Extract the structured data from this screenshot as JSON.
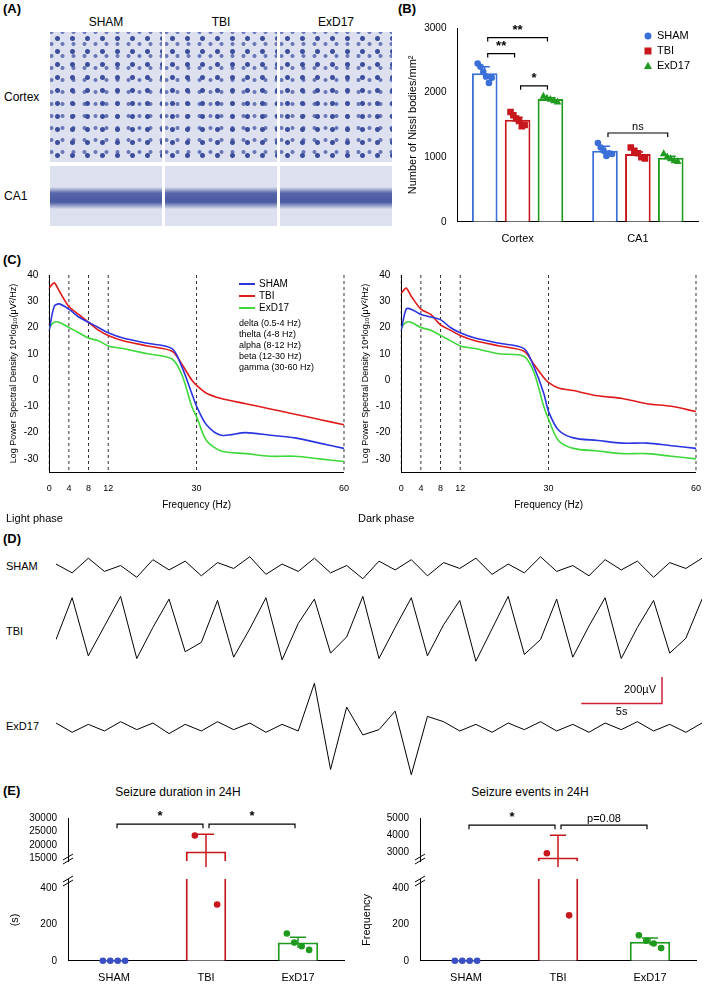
{
  "panel_labels": [
    "(A)",
    "(B)",
    "(C)",
    "(D)",
    "(E)"
  ],
  "panel_A": {
    "columns": [
      "SHAM",
      "TBI",
      "ExD17"
    ],
    "rows": [
      "Cortex",
      "CA1"
    ]
  },
  "chart_data": [
    {
      "type": "bar",
      "ylabel": "Number of Nissl bodies/mm²",
      "categories": [
        "Cortex",
        "CA1"
      ],
      "series": [
        {
          "name": "SHAM",
          "color": "#3a6fd8",
          "marker": "circle",
          "values": [
            2300,
            1100
          ],
          "errors": [
            100,
            70
          ],
          "points": [
            [
              2450,
              2400,
              2320,
              2250,
              2150,
              2230
            ],
            [
              1220,
              1150,
              1100,
              1020,
              1060,
              1050
            ]
          ]
        },
        {
          "name": "TBI",
          "color": "#c8161d",
          "marker": "square",
          "values": [
            1580,
            1050
          ],
          "errors": [
            40,
            30
          ],
          "points": [
            [
              1700,
              1650,
              1600,
              1560,
              1480,
              1500
            ],
            [
              1150,
              1100,
              1060,
              1000,
              980
            ]
          ]
        },
        {
          "name": "ExD17",
          "color": "#1f9a1f",
          "marker": "triangle",
          "values": [
            1900,
            990
          ],
          "errors": [
            20,
            25
          ],
          "points": [
            [
              1950,
              1920,
              1900,
              1880,
              1860
            ],
            [
              1060,
              1010,
              980,
              950,
              940
            ]
          ]
        }
      ],
      "ylim": [
        0,
        3000
      ],
      "yticks": [
        0,
        1000,
        2000,
        3000
      ],
      "legend": "upper right",
      "annotations": [
        {
          "category": "Cortex",
          "between": [
            "SHAM",
            "TBI"
          ],
          "text": "**"
        },
        {
          "category": "Cortex",
          "between": [
            "TBI",
            "ExD17"
          ],
          "text": "*"
        },
        {
          "category": "Cortex",
          "between": [
            "SHAM",
            "ExD17"
          ],
          "text": "**"
        },
        {
          "category": "CA1",
          "between": [
            "SHAM",
            "ExD17"
          ],
          "text": "ns"
        }
      ]
    },
    {
      "type": "line",
      "title": "Light phase",
      "xlabel": "Frequency (Hz)",
      "ylabel": "Log Power Spectral Density 10*log₁₀(μV²/Hz)",
      "x": [
        0,
        1,
        2,
        4,
        6,
        8,
        10,
        12,
        15,
        20,
        25,
        27,
        29,
        30,
        32,
        35,
        40,
        45,
        50,
        55,
        60
      ],
      "series": [
        {
          "name": "SHAM",
          "color": "#2b35e0",
          "values": [
            19,
            28,
            29,
            27,
            24,
            22,
            20,
            18,
            16,
            14,
            12,
            5,
            -5,
            -10,
            -17,
            -21,
            -20,
            -21,
            -22,
            -24,
            -26
          ]
        },
        {
          "name": "TBI",
          "color": "#e01b1b",
          "values": [
            35,
            37,
            34,
            28,
            25,
            22,
            19,
            17,
            15,
            13,
            11,
            6,
            0,
            -2,
            -5,
            -7,
            -9,
            -11,
            -13,
            -15,
            -17
          ]
        },
        {
          "name": "ExD17",
          "color": "#3ed83a",
          "values": [
            20,
            22,
            22,
            20,
            18,
            16,
            15,
            13,
            12,
            10,
            8,
            2,
            -10,
            -14,
            -23,
            -27,
            -28,
            -29,
            -29,
            -30,
            -31
          ]
        }
      ],
      "xlim": [
        0,
        60
      ],
      "xticks": [
        0,
        4,
        8,
        12,
        30,
        60
      ],
      "ylim": [
        -35,
        40
      ],
      "yticks": [
        -30,
        -20,
        -10,
        0,
        10,
        20,
        30,
        40
      ],
      "grid": "x",
      "legend": "upper right",
      "annotations": [
        "delta (0.5-4 Hz)",
        "thelta (4-8 Hz)",
        "alpha (8-12 Hz)",
        "beta (12-30 Hz)",
        "gamma (30-60 Hz)"
      ]
    },
    {
      "type": "line",
      "title": "Dark phase",
      "xlabel": "Frequency (Hz)",
      "ylabel": "Log Power Spectral Density 10*log₁₀(μV²/Hz)",
      "x": [
        0,
        1,
        2,
        4,
        6,
        8,
        10,
        12,
        15,
        20,
        25,
        27,
        29,
        30,
        32,
        35,
        40,
        45,
        50,
        55,
        60
      ],
      "series": [
        {
          "color": "#2b35e0",
          "values": [
            19,
            27,
            27,
            25,
            24,
            23,
            20,
            18,
            16,
            14,
            12,
            5,
            -5,
            -12,
            -19,
            -22,
            -23,
            -24,
            -24,
            -25,
            -26
          ]
        },
        {
          "color": "#e01b1b",
          "values": [
            33,
            35,
            32,
            27,
            25,
            21,
            19,
            17,
            15,
            13,
            11,
            6,
            1,
            -1,
            -3,
            -4,
            -6,
            -7,
            -9,
            -10,
            -12
          ]
        },
        {
          "color": "#3ed83a",
          "values": [
            20,
            22,
            22,
            20,
            19,
            17,
            15,
            13,
            12,
            10,
            9,
            3,
            -10,
            -15,
            -23,
            -26,
            -27,
            -28,
            -28,
            -29,
            -30
          ]
        }
      ],
      "xlim": [
        0,
        60
      ],
      "xticks": [
        0,
        4,
        8,
        12,
        30,
        60
      ],
      "ylim": [
        -35,
        40
      ],
      "yticks": [
        -30,
        -20,
        -10,
        0,
        10,
        20,
        30,
        40
      ],
      "grid": "x"
    },
    {
      "type": "line",
      "tick_labels": false,
      "xlim": [
        0,
        40
      ],
      "x": [
        0,
        1,
        2,
        3,
        4,
        5,
        6,
        7,
        8,
        9,
        10,
        11,
        12,
        13,
        14,
        15,
        16,
        17,
        18,
        19,
        20,
        21,
        22,
        23,
        24,
        25,
        26,
        27,
        28,
        29,
        30,
        31,
        32,
        33,
        34,
        35,
        36,
        37,
        38,
        39,
        40
      ],
      "series": [
        {
          "name": "SHAM",
          "color": "#000000",
          "ylim": [
            -150,
            150
          ],
          "values": [
            20,
            -40,
            60,
            -30,
            10,
            -70,
            50,
            -20,
            40,
            -60,
            30,
            -10,
            70,
            -50,
            20,
            -30,
            60,
            -40,
            10,
            -80,
            40,
            -20,
            50,
            -60,
            30,
            -10,
            60,
            -50,
            20,
            -40,
            70,
            -30,
            10,
            -60,
            50,
            -20,
            40,
            -70,
            30,
            -10,
            60
          ]
        },
        {
          "name": "TBI",
          "color": "#000000",
          "ylim": [
            -300,
            300
          ],
          "values": [
            -60,
            250,
            -180,
            40,
            260,
            -200,
            30,
            240,
            -150,
            -80,
            230,
            -190,
            20,
            250,
            -210,
            60,
            240,
            -160,
            -40,
            260,
            -200,
            30,
            250,
            -180,
            50,
            230,
            -220,
            20,
            260,
            -170,
            -60,
            240,
            -190,
            40,
            250,
            -200,
            30,
            230,
            -160,
            -50,
            240
          ]
        },
        {
          "name": "ExD17",
          "color": "#000000",
          "ylim": [
            -400,
            400
          ],
          "values": [
            30,
            -40,
            20,
            -30,
            40,
            -20,
            30,
            -50,
            20,
            -30,
            40,
            -20,
            30,
            -40,
            20,
            -30,
            330,
            -320,
            150,
            -60,
            -20,
            120,
            -360,
            80,
            40,
            -30,
            20,
            -40,
            30,
            -20,
            40,
            -30,
            20,
            -40,
            30,
            -20,
            40,
            -30,
            20,
            -40,
            30
          ]
        }
      ],
      "scale_bar": {
        "x": 5,
        "x_label": "5s",
        "y": 200,
        "y_label": "200µV",
        "color": "#d0203a"
      }
    },
    {
      "type": "bar",
      "title": "Seizure duration in 24H",
      "ylabel": "(s)",
      "categories": [
        "SHAM",
        "TBI",
        "ExD17"
      ],
      "values": [
        0,
        17500,
        100
      ],
      "errors": [
        0,
        6500,
        30
      ],
      "points": [
        [
          0,
          0,
          0,
          0
        ],
        [
          23500,
          310
        ],
        [
          150,
          100,
          80,
          60
        ]
      ],
      "colors": [
        "#3a4fc4",
        "#c8161d",
        "#1f9a1f"
      ],
      "marker": "circle",
      "segments": [
        {
          "ylim": [
            14000,
            30000
          ],
          "yticks": [
            15000,
            20000,
            25000,
            30000
          ]
        },
        {
          "ylim": [
            0,
            450
          ],
          "yticks": [
            0,
            200,
            400
          ]
        }
      ],
      "annotations": [
        {
          "between": [
            "SHAM",
            "TBI"
          ],
          "text": "*"
        },
        {
          "between": [
            "TBI",
            "ExD17"
          ],
          "text": "*"
        }
      ]
    },
    {
      "type": "bar",
      "title": "Seizure events in 24H",
      "ylabel": "Frequency",
      "categories": [
        "SHAM",
        "TBI",
        "ExD17"
      ],
      "values": [
        0,
        2700,
        105
      ],
      "errors": [
        0,
        1300,
        20
      ],
      "points": [
        [
          0,
          0,
          0,
          0
        ],
        [
          2950,
          250
        ],
        [
          140,
          110,
          95,
          70
        ]
      ],
      "colors": [
        "#3a4fc4",
        "#c8161d",
        "#1f9a1f"
      ],
      "marker": "circle",
      "segments": [
        {
          "ylim": [
            2500,
            5000
          ],
          "yticks": [
            3000,
            4000,
            5000
          ]
        },
        {
          "ylim": [
            0,
            450
          ],
          "yticks": [
            0,
            200,
            400
          ]
        }
      ],
      "annotations": [
        {
          "between": [
            "SHAM",
            "TBI"
          ],
          "text": "*"
        },
        {
          "between": [
            "TBI",
            "ExD17"
          ],
          "text": "p=0.08"
        }
      ]
    }
  ]
}
